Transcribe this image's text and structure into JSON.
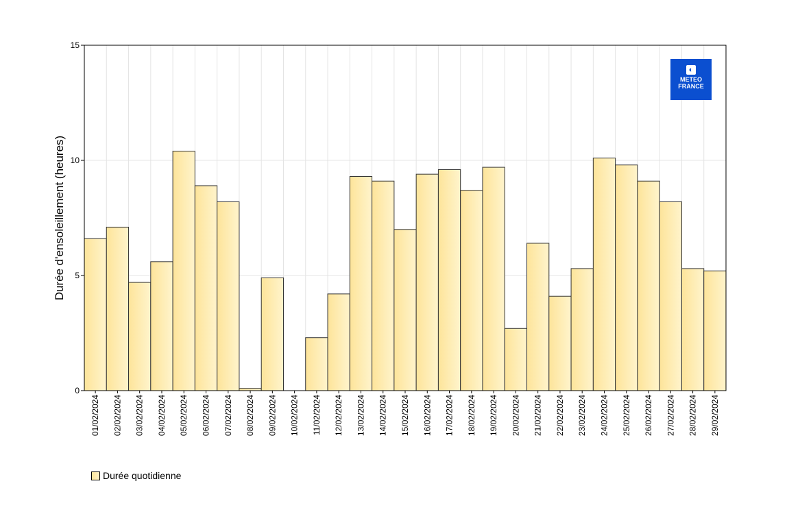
{
  "chart_data": {
    "type": "bar",
    "title": "",
    "xlabel": "",
    "ylabel": "Durée d'ensoleillement (heures)",
    "ylim": [
      0,
      15
    ],
    "yticks": [
      0,
      5,
      10,
      15
    ],
    "grid": true,
    "legend_position": "bottom-left",
    "categories": [
      "01/02/2024",
      "02/02/2024",
      "03/02/2024",
      "04/02/2024",
      "05/02/2024",
      "06/02/2024",
      "07/02/2024",
      "08/02/2024",
      "09/02/2024",
      "10/02/2024",
      "11/02/2024",
      "12/02/2024",
      "13/02/2024",
      "14/02/2024",
      "15/02/2024",
      "16/02/2024",
      "17/02/2024",
      "18/02/2024",
      "19/02/2024",
      "20/02/2024",
      "21/02/2024",
      "22/02/2024",
      "23/02/2024",
      "24/02/2024",
      "25/02/2024",
      "26/02/2024",
      "27/02/2024",
      "28/02/2024",
      "29/02/2024"
    ],
    "series": [
      {
        "name": "Durée quotidienne",
        "color": "#fde9a8",
        "values": [
          6.6,
          7.1,
          4.7,
          5.6,
          10.4,
          8.9,
          8.2,
          0.1,
          4.9,
          0,
          2.3,
          4.2,
          9.3,
          9.1,
          7.0,
          9.4,
          9.6,
          8.7,
          9.7,
          2.7,
          6.4,
          4.1,
          5.3,
          10.1,
          9.8,
          9.1,
          8.2,
          5.3,
          5.2
        ]
      }
    ]
  },
  "logo": {
    "line1": "METEO",
    "line2": "FRANCE"
  }
}
